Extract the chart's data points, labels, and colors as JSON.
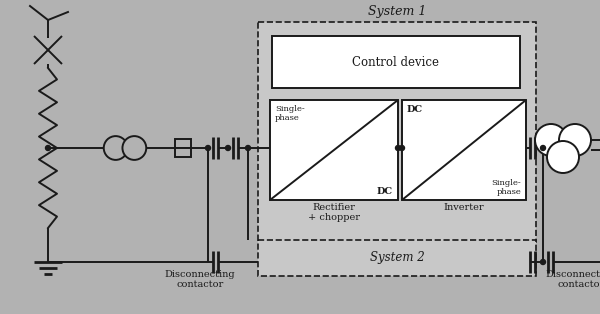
{
  "bg_color": "#b2b2b2",
  "line_color": "#1a1a1a",
  "white_fill": "#ffffff",
  "dashed_fill": "#c8c8c8",
  "title_system1": "System 1",
  "title_system2": "System 2",
  "label_control": "Control device",
  "label_rectifier": "Rectifier\n+ chopper",
  "label_inverter": "Inverter",
  "label_disc1": "Disconnecting\ncontactor",
  "label_disc2": "Disconnecting\ncontactor",
  "label_rect_tl": "Single-\nphase",
  "label_rect_br": "DC",
  "label_inv_tl": "DC",
  "label_inv_br": "Single-\nphase",
  "fig_w": 6.0,
  "fig_h": 3.14,
  "dpi": 100
}
